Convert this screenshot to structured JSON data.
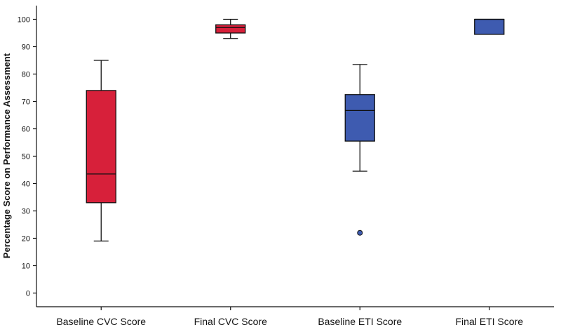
{
  "chart_data": {
    "type": "boxplot",
    "title": "",
    "xlabel": "",
    "ylabel": "Percentage Score on Performance Assessment",
    "ylim": [
      -5,
      105
    ],
    "yticks": [
      0,
      10,
      20,
      30,
      40,
      50,
      60,
      70,
      80,
      90,
      100
    ],
    "grid": false,
    "categories": [
      "Baseline CVC Score",
      "Final CVC Score",
      "Baseline ETI Score",
      "Final ETI Score"
    ],
    "series": [
      {
        "name": "Baseline CVC Score",
        "color": "#d7203a",
        "min": 19,
        "q1": 33,
        "median": 43.5,
        "q3": 74,
        "max": 85,
        "outliers": []
      },
      {
        "name": "Final CVC Score",
        "color": "#d7203a",
        "min": 93,
        "q1": 95,
        "median": 97,
        "q3": 98,
        "max": 100,
        "outliers": []
      },
      {
        "name": "Baseline ETI Score",
        "color": "#3e5bb0",
        "min": 44.5,
        "q1": 55.5,
        "median": 66.7,
        "q3": 72.5,
        "max": 83.5,
        "outliers": [
          22
        ]
      },
      {
        "name": "Final ETI Score",
        "color": "#3e5bb0",
        "min": 94.5,
        "q1": 94.5,
        "median": 100,
        "q3": 100,
        "max": 100,
        "outliers": []
      }
    ]
  }
}
